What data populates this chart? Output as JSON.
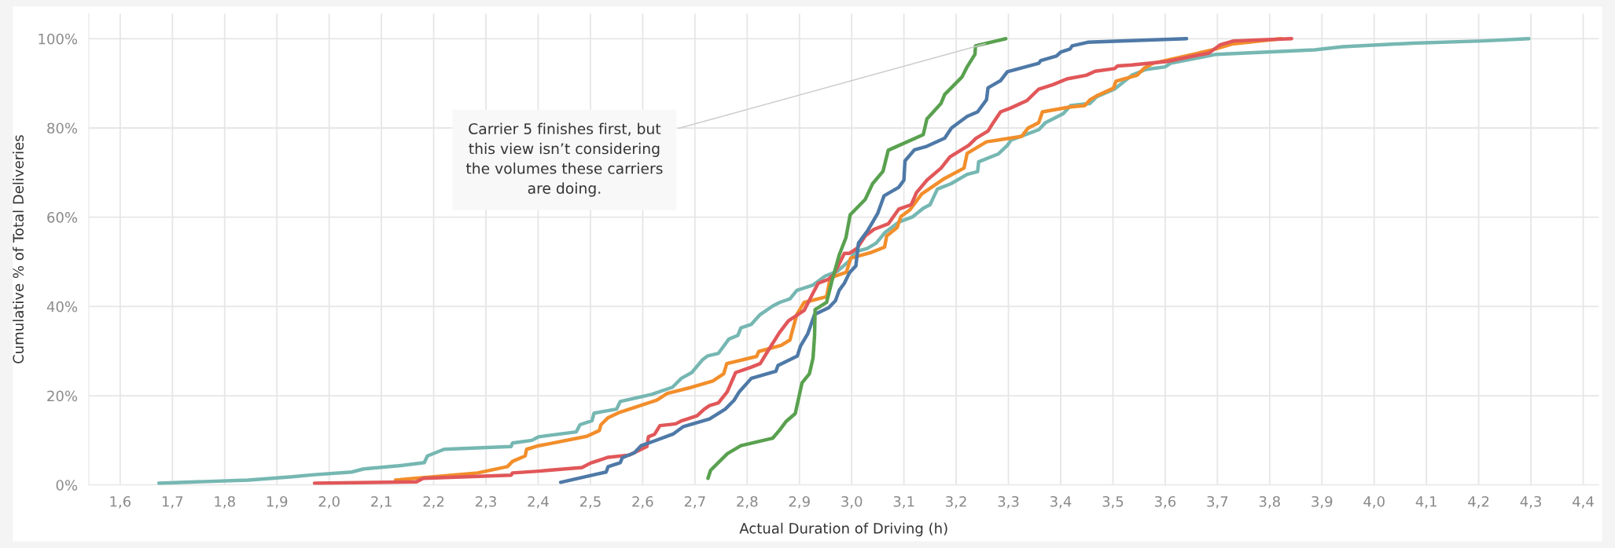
{
  "chart_data": {
    "type": "line",
    "xlabel": "Actual Duration of Driving (h)",
    "ylabel": "Cumulative % of Total Deliveries",
    "xlim": [
      1.54,
      4.43
    ],
    "ylim": [
      0,
      105.6
    ],
    "xticks": [
      {
        "value": 1.6,
        "label": "1,6"
      },
      {
        "value": 1.7,
        "label": "1,7"
      },
      {
        "value": 1.8,
        "label": "1,8"
      },
      {
        "value": 1.9,
        "label": "1,9"
      },
      {
        "value": 2.0,
        "label": "2,0"
      },
      {
        "value": 2.1,
        "label": "2,1"
      },
      {
        "value": 2.2,
        "label": "2,2"
      },
      {
        "value": 2.3,
        "label": "2,3"
      },
      {
        "value": 2.4,
        "label": "2,4"
      },
      {
        "value": 2.5,
        "label": "2,5"
      },
      {
        "value": 2.6,
        "label": "2,6"
      },
      {
        "value": 2.7,
        "label": "2,7"
      },
      {
        "value": 2.8,
        "label": "2,8"
      },
      {
        "value": 2.9,
        "label": "2,9"
      },
      {
        "value": 3.0,
        "label": "3,0"
      },
      {
        "value": 3.1,
        "label": "3,1"
      },
      {
        "value": 3.2,
        "label": "3,2"
      },
      {
        "value": 3.3,
        "label": "3,3"
      },
      {
        "value": 3.4,
        "label": "3,4"
      },
      {
        "value": 3.5,
        "label": "3,5"
      },
      {
        "value": 3.6,
        "label": "3,6"
      },
      {
        "value": 3.7,
        "label": "3,7"
      },
      {
        "value": 3.8,
        "label": "3,8"
      },
      {
        "value": 3.9,
        "label": "3,9"
      },
      {
        "value": 4.0,
        "label": "4,0"
      },
      {
        "value": 4.1,
        "label": "4,1"
      },
      {
        "value": 4.2,
        "label": "4,2"
      },
      {
        "value": 4.3,
        "label": "4,3"
      },
      {
        "value": 4.4,
        "label": "4,4"
      }
    ],
    "yticks": [
      {
        "value": 0,
        "label": "0%"
      },
      {
        "value": 20,
        "label": "20%"
      },
      {
        "value": 40,
        "label": "40%"
      },
      {
        "value": 60,
        "label": "60%"
      },
      {
        "value": 80,
        "label": "80%"
      },
      {
        "value": 100,
        "label": "100%"
      }
    ],
    "grid": true,
    "annotations": [
      {
        "text": "Carrier 5 finishes first, but\nthis view isn’t considering\nthe volumes these carriers\nare doing.",
        "x": 3.26,
        "y": 99
      }
    ],
    "series": [
      {
        "color": "#76b7b2",
        "x": [
          1.674,
          1.845,
          1.925,
          1.972,
          2.043,
          2.066,
          2.133,
          2.182,
          2.188,
          2.22,
          2.348,
          2.351,
          2.388,
          2.401,
          2.42,
          2.473,
          2.48,
          2.503,
          2.507,
          2.55,
          2.557,
          2.617,
          2.657,
          2.674,
          2.694,
          2.714,
          2.724,
          2.745,
          2.765,
          2.782,
          2.788,
          2.808,
          2.825,
          2.849,
          2.862,
          2.882,
          2.895,
          2.926,
          2.949,
          2.973,
          2.996,
          3.006,
          3.03,
          3.047,
          3.064,
          3.09,
          3.117,
          3.137,
          3.15,
          3.164,
          3.19,
          3.221,
          3.241,
          3.243,
          3.281,
          3.298,
          3.305,
          3.358,
          3.371,
          3.405,
          3.419,
          3.456,
          3.469,
          3.503,
          3.536,
          3.563,
          3.6,
          3.61,
          3.698,
          3.886,
          3.94,
          4.074,
          4.209,
          4.296
        ],
        "values": [
          0.4,
          1.1,
          1.8,
          2.3,
          2.9,
          3.6,
          4.3,
          5.0,
          6.5,
          8.0,
          8.6,
          9.4,
          10.0,
          10.8,
          11.1,
          11.9,
          13.5,
          14.4,
          16.1,
          17.0,
          18.7,
          20.3,
          21.9,
          23.9,
          25.2,
          28.0,
          28.9,
          29.5,
          32.7,
          33.5,
          35.2,
          36.0,
          38.2,
          40.1,
          40.9,
          41.7,
          43.6,
          44.8,
          46.8,
          47.9,
          50.3,
          52.2,
          53.0,
          54.2,
          56.6,
          58.9,
          60.1,
          62.0,
          62.8,
          66.3,
          67.5,
          69.6,
          70.2,
          72.4,
          74.2,
          76.1,
          77.3,
          79.6,
          81.2,
          83.2,
          85.0,
          85.5,
          87.0,
          88.7,
          91.8,
          93.1,
          93.7,
          94.5,
          96.5,
          97.5,
          98.2,
          99.0,
          99.5,
          100
        ]
      },
      {
        "color": "#f28e2b",
        "x": [
          2.127,
          2.284,
          2.341,
          2.351,
          2.375,
          2.378,
          2.401,
          2.42,
          2.493,
          2.517,
          2.52,
          2.534,
          2.554,
          2.627,
          2.647,
          2.694,
          2.734,
          2.755,
          2.761,
          2.818,
          2.822,
          2.865,
          2.882,
          2.885,
          2.895,
          2.909,
          2.952,
          2.959,
          2.99,
          2.998,
          3.037,
          3.063,
          3.067,
          3.087,
          3.094,
          3.111,
          3.134,
          3.178,
          3.215,
          3.221,
          3.258,
          3.325,
          3.338,
          3.358,
          3.365,
          3.418,
          3.446,
          3.456,
          3.469,
          3.501,
          3.506,
          3.546,
          3.56,
          3.577,
          3.691,
          3.728,
          3.822
        ],
        "values": [
          1.1,
          2.7,
          4.1,
          5.3,
          6.5,
          8.0,
          8.8,
          9.2,
          10.9,
          12.2,
          13.5,
          15.1,
          16.2,
          19.0,
          20.5,
          21.9,
          23.3,
          24.9,
          27.2,
          28.8,
          29.9,
          31.3,
          32.5,
          33.9,
          38.2,
          40.9,
          42.2,
          46.4,
          47.7,
          50.8,
          52.1,
          53.3,
          55.8,
          57.7,
          60.1,
          61.6,
          65.2,
          68.7,
          71.0,
          74.3,
          76.9,
          78.1,
          80.0,
          81.2,
          83.6,
          84.7,
          85.0,
          86.3,
          87.2,
          88.9,
          90.5,
          91.8,
          93.4,
          94.5,
          97.5,
          98.8,
          100
        ]
      },
      {
        "color": "#e15759",
        "x": [
          1.972,
          2.167,
          2.18,
          2.348,
          2.351,
          2.401,
          2.42,
          2.484,
          2.5,
          2.534,
          2.574,
          2.608,
          2.611,
          2.623,
          2.633,
          2.663,
          2.673,
          2.704,
          2.718,
          2.728,
          2.745,
          2.762,
          2.778,
          2.808,
          2.825,
          2.839,
          2.862,
          2.879,
          2.909,
          2.926,
          2.936,
          2.956,
          2.966,
          2.986,
          2.996,
          3.01,
          3.026,
          3.043,
          3.07,
          3.09,
          3.114,
          3.124,
          3.144,
          3.171,
          3.188,
          3.224,
          3.238,
          3.261,
          3.271,
          3.285,
          3.305,
          3.335,
          3.358,
          3.385,
          3.412,
          3.449,
          3.466,
          3.503,
          3.509,
          3.536,
          3.604,
          3.684,
          3.705,
          3.731,
          3.842
        ],
        "values": [
          0.4,
          0.7,
          1.5,
          2.2,
          2.7,
          3.1,
          3.3,
          3.9,
          4.9,
          6.2,
          6.7,
          8.6,
          10.8,
          11.4,
          13.3,
          13.7,
          14.3,
          15.5,
          17.0,
          17.8,
          18.4,
          20.9,
          25.2,
          26.4,
          27.2,
          29.9,
          34.2,
          36.8,
          39.1,
          43.0,
          45.2,
          46.1,
          47.2,
          51.9,
          51.9,
          53.0,
          55.8,
          57.3,
          58.5,
          61.8,
          62.8,
          65.5,
          68.3,
          71.0,
          73.5,
          76.1,
          77.7,
          79.3,
          81.2,
          83.6,
          84.5,
          86.1,
          88.7,
          89.7,
          91.0,
          91.8,
          92.7,
          93.3,
          93.9,
          94.1,
          94.9,
          96.8,
          98.6,
          99.5,
          100
        ]
      },
      {
        "color": "#4e79a7",
        "x": [
          2.443,
          2.53,
          2.534,
          2.557,
          2.561,
          2.584,
          2.597,
          2.621,
          2.658,
          2.678,
          2.728,
          2.758,
          2.775,
          2.785,
          2.808,
          2.855,
          2.859,
          2.896,
          2.902,
          2.916,
          2.929,
          2.956,
          2.969,
          2.976,
          2.986,
          2.996,
          3.008,
          3.013,
          3.03,
          3.05,
          3.062,
          3.09,
          3.1,
          3.102,
          3.12,
          3.144,
          3.178,
          3.191,
          3.221,
          3.241,
          3.258,
          3.261,
          3.285,
          3.298,
          3.358,
          3.362,
          3.392,
          3.4,
          3.418,
          3.422,
          3.452,
          3.641
        ],
        "values": [
          0.6,
          2.9,
          4.1,
          5.0,
          6.1,
          7.2,
          8.8,
          9.8,
          11.4,
          13.1,
          14.8,
          17.0,
          19.0,
          20.9,
          23.9,
          25.5,
          26.8,
          28.9,
          31.1,
          33.9,
          38.2,
          39.7,
          41.3,
          43.6,
          45.2,
          47.6,
          49.1,
          54.2,
          56.9,
          60.9,
          64.8,
          66.7,
          68.3,
          72.6,
          75.1,
          75.9,
          77.7,
          80.0,
          82.6,
          83.6,
          86.3,
          89.0,
          90.6,
          92.6,
          94.5,
          95.1,
          96.1,
          97.0,
          97.7,
          98.4,
          99.2,
          100
        ]
      },
      {
        "color": "#59a14f",
        "x": [
          2.725,
          2.73,
          2.762,
          2.788,
          2.849,
          2.862,
          2.875,
          2.892,
          2.905,
          2.919,
          2.926,
          2.929,
          2.93,
          2.952,
          2.962,
          2.976,
          2.989,
          2.997,
          3.026,
          3.04,
          3.06,
          3.07,
          3.137,
          3.144,
          3.171,
          3.178,
          3.211,
          3.221,
          3.236,
          3.237,
          3.295
        ],
        "values": [
          1.5,
          3.3,
          7.0,
          8.8,
          10.5,
          12.3,
          14.3,
          16.0,
          22.9,
          24.9,
          28.4,
          33.5,
          39.3,
          40.9,
          45.6,
          51.5,
          55.4,
          60.5,
          64.0,
          67.5,
          70.3,
          75.0,
          78.5,
          82.0,
          85.5,
          87.5,
          91.4,
          93.7,
          96.5,
          98.4,
          100
        ]
      }
    ]
  }
}
